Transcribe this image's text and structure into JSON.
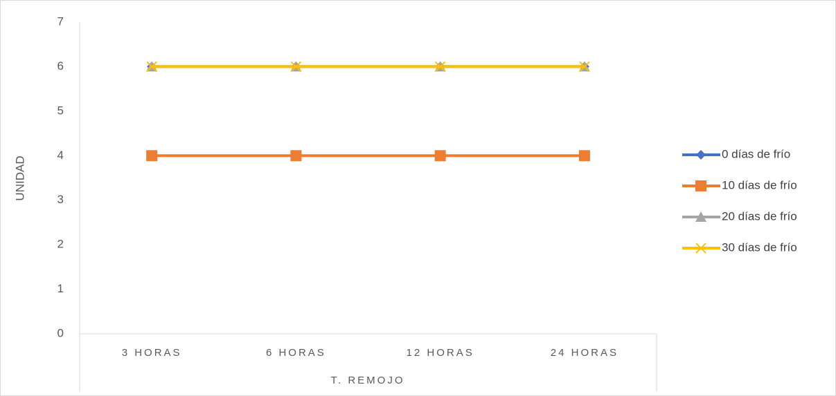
{
  "chart_data": {
    "type": "line",
    "x_label": "T. REMOJO",
    "y_label": "UNIDAD",
    "categories": [
      "3 HORAS",
      "6 HORAS",
      "12 HORAS",
      "24 HORAS"
    ],
    "series": [
      {
        "name": "0 días de frío",
        "color": "#4472c4",
        "marker": "diamond",
        "values": [
          6,
          6,
          6,
          6
        ]
      },
      {
        "name": "10 días de frío",
        "color": "#ed7d31",
        "marker": "square",
        "values": [
          4,
          4,
          4,
          4
        ]
      },
      {
        "name": "20 días de frío",
        "color": "#a5a5a5",
        "marker": "triangle",
        "values": [
          6,
          6,
          6,
          6
        ]
      },
      {
        "name": "30 días de frío",
        "color": "#ffc000",
        "marker": "x",
        "values": [
          6,
          6,
          6,
          6
        ]
      }
    ],
    "ylim": [
      0,
      7
    ],
    "yticks": [
      0,
      1,
      2,
      3,
      4,
      5,
      6,
      7
    ],
    "grid": false,
    "legend": "right"
  }
}
